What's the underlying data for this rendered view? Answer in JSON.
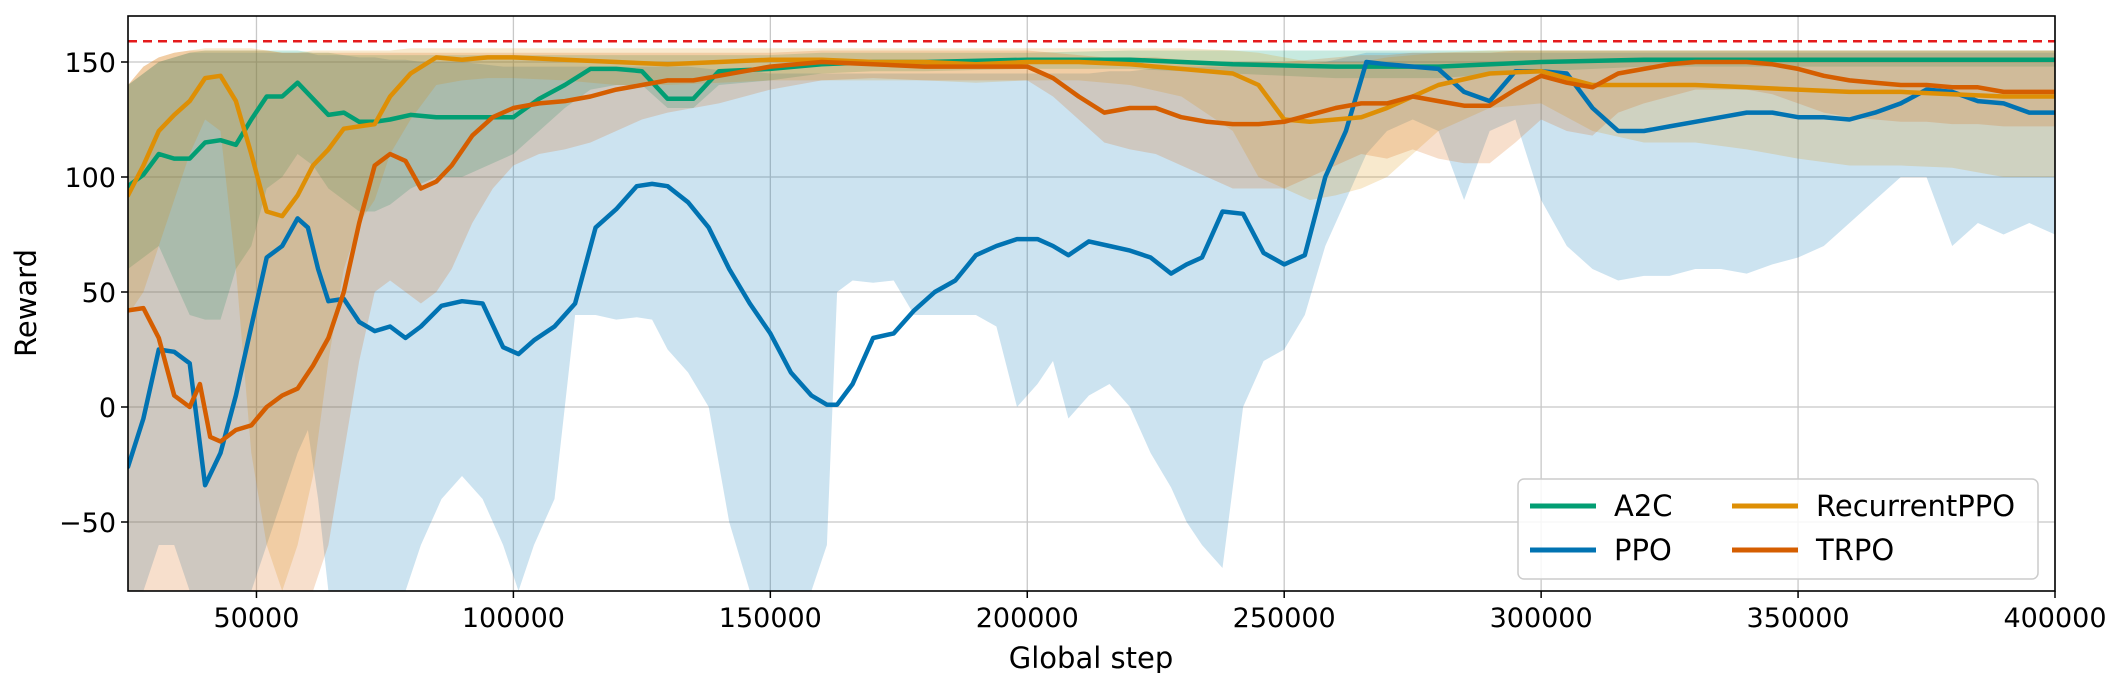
{
  "chart_data": {
    "type": "line",
    "xlabel": "Global step",
    "ylabel": "Reward",
    "xlim": [
      25000,
      400000
    ],
    "ylim": [
      -80,
      170
    ],
    "x_ticks": [
      50000,
      100000,
      150000,
      200000,
      250000,
      300000,
      350000,
      400000
    ],
    "y_ticks": [
      -50,
      0,
      50,
      100,
      150
    ],
    "grid": true,
    "reference_line": {
      "y": 159,
      "color": "#e41a1c",
      "style": "dashed"
    },
    "legend": {
      "position": "lower-right",
      "columns": 2
    },
    "series": [
      {
        "name": "A2C",
        "color": "#029e73",
        "x": [
          25000,
          28000,
          31000,
          34000,
          37000,
          40000,
          43000,
          46000,
          49000,
          52000,
          55000,
          58000,
          61000,
          64000,
          67000,
          70000,
          73000,
          76000,
          80000,
          85000,
          90000,
          95000,
          100000,
          105000,
          110000,
          115000,
          120000,
          125000,
          130000,
          135000,
          140000,
          150000,
          160000,
          170000,
          180000,
          200000,
          220000,
          240000,
          260000,
          280000,
          300000,
          320000,
          340000,
          360000,
          380000,
          400000
        ],
        "y": [
          96,
          101,
          110,
          108,
          108,
          115,
          116,
          114,
          125,
          135,
          135,
          141,
          134,
          127,
          128,
          124,
          124,
          125,
          127,
          126,
          126,
          126,
          126,
          134,
          140,
          147,
          147,
          146,
          134,
          134,
          146,
          147,
          149,
          150,
          150,
          151,
          151,
          149,
          148,
          148,
          150,
          151,
          151,
          151,
          151,
          151
        ],
        "band_upper": [
          140,
          145,
          150,
          152,
          154,
          155,
          155,
          155,
          155,
          155,
          155,
          155,
          154,
          154,
          153,
          153,
          153,
          153,
          153,
          153,
          153,
          153,
          153,
          153,
          153,
          153,
          153,
          153,
          153,
          153,
          153,
          153,
          154,
          154,
          154,
          154,
          155,
          155,
          155,
          155,
          155,
          155,
          155,
          155,
          155,
          155
        ],
        "band_lower": [
          60,
          65,
          70,
          55,
          40,
          38,
          38,
          60,
          70,
          95,
          100,
          110,
          105,
          95,
          90,
          85,
          85,
          88,
          95,
          100,
          100,
          105,
          110,
          120,
          130,
          138,
          140,
          140,
          130,
          130,
          140,
          142,
          145,
          146,
          146,
          147,
          147,
          145,
          143,
          143,
          146,
          148,
          148,
          148,
          148,
          148
        ]
      },
      {
        "name": "PPO",
        "color": "#0173b2",
        "x": [
          25000,
          28000,
          31000,
          34000,
          37000,
          40000,
          43000,
          46000,
          49000,
          52000,
          55000,
          58000,
          60000,
          62000,
          64000,
          67000,
          70000,
          73000,
          76000,
          79000,
          82000,
          86000,
          90000,
          94000,
          98000,
          101000,
          104000,
          108000,
          112000,
          116000,
          120000,
          124000,
          127000,
          130000,
          134000,
          138000,
          142000,
          146000,
          150000,
          154000,
          158000,
          161000,
          163000,
          166000,
          170000,
          174000,
          178000,
          182000,
          186000,
          190000,
          194000,
          198000,
          202000,
          205000,
          208000,
          212000,
          216000,
          220000,
          224000,
          228000,
          231000,
          234000,
          238000,
          242000,
          246000,
          250000,
          254000,
          258000,
          262000,
          266000,
          270000,
          275000,
          280000,
          285000,
          290000,
          295000,
          300000,
          305000,
          310000,
          315000,
          320000,
          325000,
          330000,
          335000,
          340000,
          345000,
          350000,
          355000,
          360000,
          365000,
          370000,
          375000,
          380000,
          385000,
          390000,
          395000,
          400000
        ],
        "y": [
          -26,
          -5,
          25,
          24,
          19,
          -34,
          -20,
          5,
          35,
          65,
          70,
          82,
          78,
          60,
          46,
          47,
          37,
          33,
          35,
          30,
          35,
          44,
          46,
          45,
          26,
          23,
          29,
          35,
          45,
          78,
          86,
          96,
          97,
          96,
          89,
          78,
          60,
          45,
          32,
          15,
          5,
          1,
          1,
          10,
          30,
          32,
          42,
          50,
          55,
          66,
          70,
          73,
          73,
          70,
          66,
          72,
          70,
          68,
          65,
          58,
          62,
          65,
          85,
          84,
          67,
          62,
          66,
          100,
          120,
          150,
          149,
          148,
          147,
          137,
          133,
          146,
          146,
          145,
          130,
          120,
          120,
          122,
          124,
          126,
          128,
          128,
          126,
          126,
          125,
          128,
          132,
          138,
          137,
          133,
          132,
          128,
          128
        ],
        "band_upper": [
          140,
          145,
          150,
          152,
          154,
          154,
          154,
          154,
          154,
          154,
          154,
          154,
          154,
          153,
          153,
          153,
          152,
          152,
          151,
          151,
          150,
          150,
          150,
          149,
          148,
          148,
          148,
          148,
          148,
          148,
          148,
          148,
          148,
          148,
          148,
          147,
          146,
          146,
          145,
          145,
          145,
          145,
          145,
          145,
          145,
          145,
          145,
          145,
          145,
          145,
          145,
          145,
          145,
          145,
          145,
          145,
          146,
          146,
          147,
          148,
          148,
          148,
          148,
          148,
          148,
          148,
          149,
          150,
          152,
          154,
          154,
          154,
          154,
          154,
          154,
          154,
          154,
          154,
          154,
          154,
          154,
          154,
          154,
          154,
          154,
          154,
          154,
          154,
          154,
          154,
          154,
          154,
          154,
          154,
          154,
          154,
          154
        ],
        "band_lower": [
          -80,
          -80,
          -60,
          -60,
          -80,
          -80,
          -80,
          -80,
          -80,
          -60,
          -40,
          -20,
          -10,
          -40,
          -80,
          -80,
          -80,
          -80,
          -80,
          -80,
          -60,
          -40,
          -30,
          -40,
          -60,
          -80,
          -60,
          -40,
          40,
          40,
          38,
          39,
          38,
          25,
          15,
          0,
          -50,
          -80,
          -80,
          -80,
          -80,
          -60,
          50,
          55,
          54,
          55,
          40,
          40,
          40,
          40,
          35,
          0,
          10,
          20,
          -5,
          5,
          10,
          0,
          -20,
          -35,
          -50,
          -60,
          -70,
          0,
          20,
          25,
          40,
          70,
          90,
          110,
          120,
          125,
          120,
          90,
          120,
          125,
          90,
          70,
          60,
          55,
          57,
          57,
          60,
          60,
          58,
          62,
          65,
          70,
          80,
          90,
          100,
          100,
          70,
          80,
          75,
          80,
          75
        ]
      },
      {
        "name": "RecurrentPPO",
        "color": "#de8f05",
        "x": [
          25000,
          28000,
          31000,
          34000,
          37000,
          40000,
          43000,
          46000,
          49000,
          52000,
          55000,
          58000,
          61000,
          64000,
          67000,
          70000,
          73000,
          76000,
          80000,
          85000,
          90000,
          95000,
          100000,
          110000,
          120000,
          130000,
          140000,
          150000,
          160000,
          170000,
          180000,
          190000,
          200000,
          210000,
          220000,
          230000,
          240000,
          245000,
          250000,
          255000,
          260000,
          265000,
          270000,
          275000,
          280000,
          290000,
          300000,
          310000,
          320000,
          330000,
          340000,
          350000,
          360000,
          370000,
          380000,
          390000,
          400000
        ],
        "y": [
          92,
          105,
          120,
          127,
          133,
          143,
          144,
          133,
          110,
          85,
          83,
          92,
          105,
          112,
          121,
          122,
          123,
          135,
          145,
          152,
          151,
          152,
          152,
          151,
          150,
          149,
          150,
          151,
          151,
          150,
          150,
          149,
          150,
          150,
          149,
          147,
          145,
          140,
          125,
          124,
          125,
          126,
          130,
          135,
          140,
          145,
          146,
          140,
          140,
          140,
          139,
          138,
          137,
          137,
          136,
          135,
          135
        ],
        "band_upper": [
          140,
          148,
          152,
          154,
          155,
          156,
          156,
          156,
          156,
          155,
          154,
          154,
          155,
          155,
          155,
          155,
          155,
          155,
          156,
          156,
          156,
          156,
          156,
          156,
          156,
          156,
          156,
          156,
          156,
          156,
          156,
          156,
          156,
          156,
          156,
          156,
          155,
          154,
          152,
          150,
          150,
          150,
          152,
          153,
          154,
          155,
          155,
          155,
          155,
          155,
          155,
          155,
          155,
          155,
          155,
          155,
          155
        ],
        "band_lower": [
          40,
          50,
          70,
          90,
          110,
          125,
          120,
          60,
          -20,
          -60,
          -80,
          -60,
          -30,
          20,
          60,
          80,
          90,
          110,
          125,
          140,
          142,
          143,
          143,
          142,
          140,
          140,
          141,
          142,
          142,
          142,
          142,
          141,
          142,
          142,
          140,
          135,
          120,
          100,
          95,
          90,
          92,
          95,
          100,
          110,
          120,
          130,
          132,
          120,
          115,
          115,
          112,
          108,
          105,
          105,
          104,
          100,
          100
        ]
      },
      {
        "name": "TRPO",
        "color": "#d55e00",
        "x": [
          25000,
          28000,
          31000,
          34000,
          37000,
          39000,
          41000,
          43000,
          46000,
          49000,
          52000,
          55000,
          58000,
          61000,
          64000,
          67000,
          70000,
          73000,
          76000,
          79000,
          82000,
          85000,
          88000,
          92000,
          96000,
          100000,
          105000,
          110000,
          115000,
          120000,
          125000,
          130000,
          135000,
          140000,
          145000,
          150000,
          160000,
          170000,
          180000,
          190000,
          200000,
          205000,
          210000,
          215000,
          220000,
          225000,
          230000,
          235000,
          240000,
          245000,
          250000,
          255000,
          260000,
          265000,
          270000,
          275000,
          280000,
          285000,
          290000,
          295000,
          300000,
          305000,
          310000,
          315000,
          320000,
          325000,
          330000,
          335000,
          340000,
          345000,
          350000,
          355000,
          360000,
          365000,
          370000,
          375000,
          380000,
          385000,
          390000,
          395000,
          400000
        ],
        "y": [
          42,
          43,
          30,
          5,
          0,
          10,
          -13,
          -15,
          -10,
          -8,
          0,
          5,
          8,
          18,
          30,
          50,
          80,
          105,
          110,
          107,
          95,
          98,
          105,
          118,
          126,
          130,
          132,
          133,
          135,
          138,
          140,
          142,
          142,
          144,
          146,
          148,
          150,
          149,
          148,
          148,
          148,
          143,
          135,
          128,
          130,
          130,
          126,
          124,
          123,
          123,
          124,
          127,
          130,
          132,
          132,
          135,
          133,
          131,
          131,
          138,
          144,
          141,
          139,
          145,
          147,
          149,
          150,
          150,
          150,
          149,
          147,
          144,
          142,
          141,
          140,
          140,
          139,
          139,
          137,
          137,
          137
        ],
        "band_upper": [
          140,
          148,
          152,
          154,
          155,
          155,
          155,
          155,
          155,
          155,
          155,
          154,
          154,
          154,
          154,
          154,
          154,
          154,
          154,
          154,
          154,
          154,
          154,
          154,
          154,
          154,
          154,
          154,
          154,
          154,
          154,
          154,
          154,
          154,
          154,
          154,
          155,
          155,
          155,
          155,
          155,
          154,
          153,
          152,
          152,
          152,
          151,
          150,
          150,
          150,
          150,
          151,
          152,
          153,
          153,
          154,
          154,
          154,
          154,
          155,
          155,
          155,
          155,
          155,
          155,
          155,
          155,
          155,
          155,
          155,
          155,
          155,
          155,
          155,
          155,
          155,
          155,
          155,
          155,
          155,
          155
        ],
        "band_lower": [
          -80,
          -80,
          -80,
          -80,
          -80,
          -80,
          -80,
          -80,
          -80,
          -80,
          -80,
          -80,
          -80,
          -80,
          -60,
          -20,
          20,
          50,
          55,
          50,
          45,
          50,
          60,
          80,
          95,
          105,
          110,
          112,
          115,
          120,
          125,
          128,
          130,
          132,
          135,
          138,
          142,
          143,
          142,
          142,
          142,
          135,
          125,
          115,
          112,
          110,
          105,
          100,
          95,
          95,
          95,
          100,
          105,
          110,
          108,
          112,
          108,
          106,
          106,
          115,
          125,
          120,
          118,
          128,
          132,
          135,
          138,
          138,
          138,
          136,
          132,
          128,
          126,
          125,
          124,
          124,
          123,
          123,
          122,
          122,
          122
        ]
      }
    ]
  }
}
